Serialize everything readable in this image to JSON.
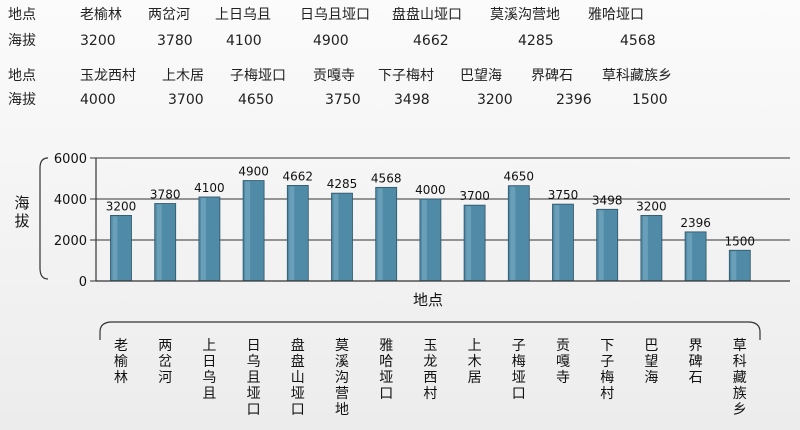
{
  "table": {
    "row_header_place": "地点",
    "row_header_altitude": "海拔",
    "row1": {
      "places": [
        "老榆林",
        "两岔河",
        "上日乌且",
        "日乌且垭口",
        "盘盘山垭口",
        "莫溪沟营地",
        "雅哈垭口"
      ],
      "altitudes": [
        "3200",
        "3780",
        "4100",
        "4900",
        "4662",
        "4285",
        "4568"
      ]
    },
    "row2": {
      "places": [
        "玉龙西村",
        "上木居",
        "子梅垭口",
        "贡嘎寺",
        "下子梅村",
        "巴望海",
        "界碑石",
        "草科藏族乡"
      ],
      "altitudes": [
        "4000",
        "3700",
        "4650",
        "3750",
        "3498",
        "3200",
        "2396",
        "1500"
      ]
    }
  },
  "chart_data": {
    "type": "bar",
    "categories": [
      "老榆林",
      "两岔河",
      "上日乌且",
      "日乌且垭口",
      "盘盘山垭口",
      "莫溪沟营地",
      "雅哈垭口",
      "玉龙西村",
      "上木居",
      "子梅垭口",
      "贡嘎寺",
      "下子梅村",
      "巴望海",
      "界碑石",
      "草科藏族乡"
    ],
    "values": [
      3200,
      3780,
      4100,
      4900,
      4662,
      4285,
      4568,
      4000,
      3700,
      4650,
      3750,
      3498,
      3200,
      2396,
      1500
    ],
    "xlabel": "地点",
    "ylabel": "海拔",
    "ylim": [
      0,
      6000
    ],
    "yticks": [
      0,
      2000,
      4000,
      6000
    ],
    "grid": true,
    "bar_color": "#4f8aa6"
  }
}
